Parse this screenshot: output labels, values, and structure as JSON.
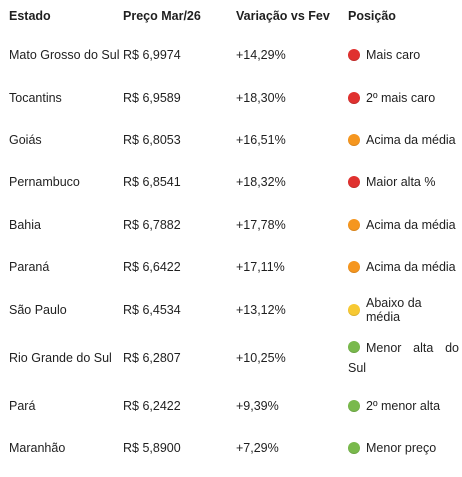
{
  "headers": {
    "state": "Estado",
    "price": "Preço Mar/26",
    "variation": "Variação vs Fev",
    "position": "Posição"
  },
  "rows": [
    {
      "state": "Mato Grosso do Sul",
      "price": "R$ 6,9974",
      "variation": "+14,29%",
      "status_color": "red",
      "position": "Mais caro"
    },
    {
      "state": "Tocantins",
      "price": "R$ 6,9589",
      "variation": "+18,30%",
      "status_color": "red",
      "position": "2º mais caro"
    },
    {
      "state": "Goiás",
      "price": "R$ 6,8053",
      "variation": "+16,51%",
      "status_color": "orange",
      "position": "Acima da média"
    },
    {
      "state": "Pernambuco",
      "price": "R$ 6,8541",
      "variation": "+18,32%",
      "status_color": "red",
      "position": "Maior alta %"
    },
    {
      "state": "Bahia",
      "price": "R$ 6,7882",
      "variation": "+17,78%",
      "status_color": "orange",
      "position": "Acima da média"
    },
    {
      "state": "Paraná",
      "price": "R$ 6,6422",
      "variation": "+17,11%",
      "status_color": "orange",
      "position": "Acima da média"
    },
    {
      "state": "São Paulo",
      "price": "R$ 6,4534",
      "variation": "+13,12%",
      "status_color": "yellow",
      "position": "Abaixo da média"
    },
    {
      "state": "Rio Grande do Sul",
      "price": "R$ 6,2807",
      "variation": "+10,25%",
      "status_color": "green",
      "position": "Menor alta do Sul"
    },
    {
      "state": "Pará",
      "price": "R$ 6,2422",
      "variation": "+9,39%",
      "status_color": "green",
      "position": "2º menor alta"
    },
    {
      "state": "Maranhão",
      "price": "R$ 5,8900",
      "variation": "+7,29%",
      "status_color": "green",
      "position": "Menor preço"
    }
  ],
  "colors": {
    "red": "#e0312f",
    "orange": "#f5961f",
    "yellow": "#f7c933",
    "green": "#79b94c"
  }
}
